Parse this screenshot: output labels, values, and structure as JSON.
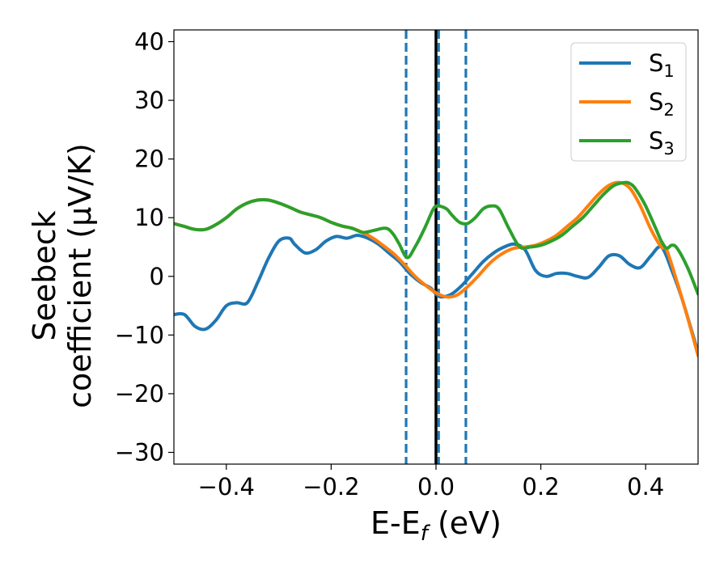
{
  "chart_data": {
    "type": "line",
    "xlabel": {
      "main": "E-E",
      "sub": "f",
      "unit": " (eV)"
    },
    "ylabel": {
      "line1": "Seebeck",
      "line2": "coefficient  (μV/K)"
    },
    "xlim": [
      -0.5,
      0.5
    ],
    "ylim": [
      -32,
      42
    ],
    "xticks": [
      -0.4,
      -0.2,
      0.0,
      0.2,
      0.4
    ],
    "xtick_labels": [
      "−0.4",
      "−0.2",
      "0.0",
      "0.2",
      "0.4"
    ],
    "yticks": [
      -30,
      -20,
      -10,
      0,
      10,
      20,
      30,
      40
    ],
    "ytick_labels": [
      "−30",
      "−20",
      "−10",
      "0",
      "10",
      "20",
      "30",
      "40"
    ],
    "grid": false,
    "legend_position": "top-right",
    "vlines": [
      {
        "x": -0.057,
        "style": "dashed",
        "color": "#1f77b4"
      },
      {
        "x": 0.0,
        "style": "solid",
        "color": "#000000"
      },
      {
        "x": 0.005,
        "style": "dashed",
        "color": "#1f77b4"
      },
      {
        "x": 0.057,
        "style": "dashed",
        "color": "#1f77b4"
      }
    ],
    "series": [
      {
        "name": "S",
        "sub": "1",
        "color": "#1f77b4",
        "x": [
          -0.5,
          -0.48,
          -0.46,
          -0.44,
          -0.42,
          -0.4,
          -0.38,
          -0.36,
          -0.34,
          -0.32,
          -0.3,
          -0.28,
          -0.27,
          -0.25,
          -0.23,
          -0.21,
          -0.19,
          -0.17,
          -0.15,
          -0.13,
          -0.11,
          -0.09,
          -0.07,
          -0.05,
          -0.03,
          -0.01,
          0.0,
          0.01,
          0.03,
          0.05,
          0.07,
          0.09,
          0.11,
          0.13,
          0.15,
          0.17,
          0.19,
          0.21,
          0.23,
          0.25,
          0.27,
          0.29,
          0.31,
          0.33,
          0.35,
          0.37,
          0.39,
          0.41,
          0.43,
          0.45,
          0.47,
          0.5
        ],
        "y": [
          -6.5,
          -6.5,
          -8.5,
          -9.0,
          -7.5,
          -5.0,
          -4.5,
          -4.5,
          -1.0,
          3.0,
          6.0,
          6.5,
          5.5,
          4.0,
          4.5,
          6.0,
          6.8,
          6.5,
          7.0,
          6.5,
          5.5,
          4.0,
          2.5,
          0.5,
          -1.0,
          -2.0,
          -3.0,
          -3.5,
          -3.0,
          -1.5,
          0.5,
          2.5,
          4.0,
          5.0,
          5.5,
          4.5,
          1.0,
          0.0,
          0.5,
          0.5,
          0.0,
          -0.2,
          1.5,
          3.5,
          3.5,
          2.0,
          1.5,
          3.5,
          5.0,
          1.0,
          -4.0,
          -13.0
        ]
      },
      {
        "name": "S",
        "sub": "2",
        "color": "#ff7f0e",
        "x": [
          -0.5,
          -0.48,
          -0.46,
          -0.44,
          -0.42,
          -0.4,
          -0.38,
          -0.36,
          -0.34,
          -0.32,
          -0.3,
          -0.28,
          -0.26,
          -0.24,
          -0.22,
          -0.2,
          -0.18,
          -0.16,
          -0.14,
          -0.12,
          -0.1,
          -0.08,
          -0.06,
          -0.04,
          -0.02,
          0.0,
          0.02,
          0.04,
          0.06,
          0.08,
          0.1,
          0.12,
          0.14,
          0.16,
          0.17,
          0.19,
          0.21,
          0.23,
          0.25,
          0.27,
          0.29,
          0.31,
          0.33,
          0.35,
          0.37,
          0.39,
          0.41,
          0.43,
          0.44,
          0.46,
          0.48,
          0.5
        ],
        "y": [
          9.0,
          8.5,
          8.0,
          8.0,
          8.8,
          10.0,
          11.5,
          12.5,
          13.0,
          13.0,
          12.5,
          11.8,
          11.0,
          10.5,
          10.0,
          9.2,
          8.6,
          8.2,
          7.5,
          6.5,
          5.2,
          3.8,
          2.0,
          0.0,
          -1.5,
          -2.8,
          -3.5,
          -3.2,
          -1.8,
          0.0,
          2.0,
          3.5,
          4.5,
          5.0,
          5.0,
          5.3,
          6.0,
          7.0,
          8.5,
          10.0,
          12.0,
          14.0,
          15.5,
          16.0,
          15.0,
          12.0,
          8.0,
          5.0,
          4.5,
          -1.0,
          -7.0,
          -13.5
        ]
      },
      {
        "name": "S",
        "sub": "3",
        "color": "#2ca02c",
        "x": [
          -0.5,
          -0.48,
          -0.46,
          -0.44,
          -0.42,
          -0.4,
          -0.38,
          -0.36,
          -0.34,
          -0.32,
          -0.3,
          -0.28,
          -0.26,
          -0.24,
          -0.22,
          -0.2,
          -0.18,
          -0.16,
          -0.14,
          -0.12,
          -0.1,
          -0.09,
          -0.08,
          -0.07,
          -0.055,
          -0.04,
          -0.02,
          -0.005,
          0.005,
          0.02,
          0.03,
          0.045,
          0.06,
          0.075,
          0.09,
          0.105,
          0.12,
          0.14,
          0.16,
          0.18,
          0.2,
          0.22,
          0.24,
          0.26,
          0.28,
          0.3,
          0.32,
          0.34,
          0.36,
          0.37,
          0.38,
          0.4,
          0.42,
          0.43,
          0.44,
          0.45,
          0.46,
          0.48,
          0.5
        ],
        "y": [
          9.0,
          8.5,
          8.0,
          8.0,
          8.8,
          10.0,
          11.5,
          12.5,
          13.0,
          13.0,
          12.5,
          11.8,
          11.0,
          10.5,
          10.0,
          9.2,
          8.6,
          8.2,
          7.5,
          7.8,
          8.2,
          8.0,
          7.0,
          5.5,
          3.2,
          5.0,
          8.5,
          11.5,
          12.0,
          11.5,
          10.5,
          9.2,
          9.0,
          10.0,
          11.5,
          12.0,
          11.5,
          8.0,
          5.0,
          5.0,
          5.3,
          6.0,
          7.0,
          8.5,
          10.0,
          12.0,
          14.0,
          15.5,
          16.0,
          15.8,
          15.0,
          12.0,
          8.0,
          6.0,
          4.8,
          5.3,
          4.8,
          1.5,
          -3.0
        ]
      }
    ]
  }
}
